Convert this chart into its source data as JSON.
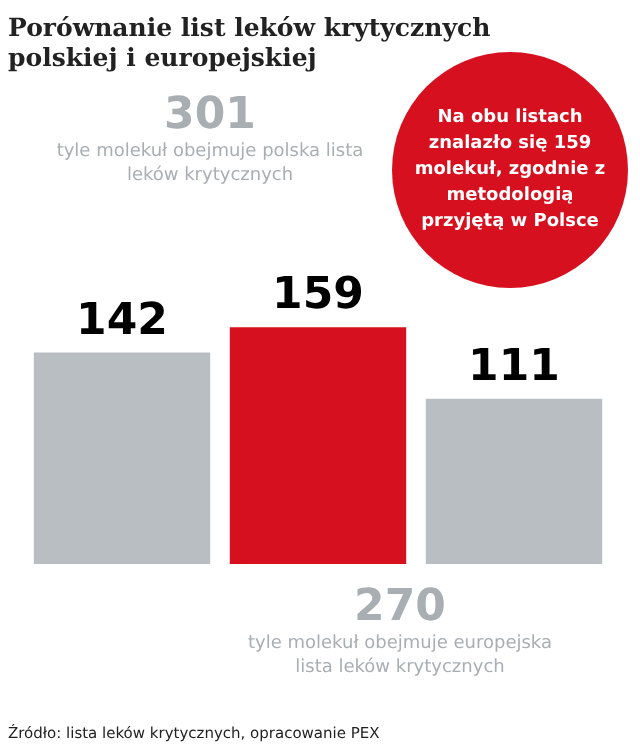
{
  "chart_data": {
    "type": "bar",
    "title": "Porównanie list leków krytycznych polskiej i europejskiej",
    "categories": [
      null,
      null,
      null
    ],
    "values": [
      142,
      159,
      111
    ],
    "colors": [
      "#b9bec3",
      "#d7101f",
      "#b9bec3"
    ],
    "data_labels": true,
    "annotations": [
      "301",
      "tyle molekuł obejmuje polska lista leków krytycznych",
      "Na obu listach znalazło się 159 molekuł, zgodnie z metodologią przyjętą w Polsce",
      "270",
      "tyle molekuł obejmuje europejska lista leków krytycznych",
      "Źródło: lista leków krytycznych, opracowanie PEX"
    ]
  }
}
